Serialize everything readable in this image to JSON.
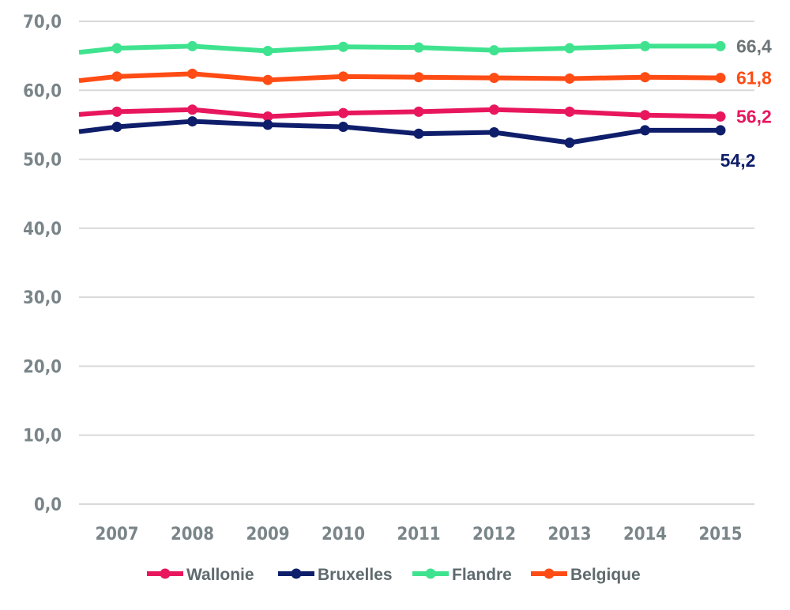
{
  "chart_data": {
    "type": "line",
    "title": "",
    "xlabel": "",
    "ylabel": "",
    "categories": [
      "2007",
      "2008",
      "2009",
      "2010",
      "2011",
      "2012",
      "2013",
      "2014",
      "2015"
    ],
    "ylim": [
      0,
      70
    ],
    "yticks": [
      "0,0",
      "10,0",
      "20,0",
      "30,0",
      "40,0",
      "50,0",
      "60,0",
      "70,0"
    ],
    "grid": true,
    "legend_position": "bottom",
    "series": [
      {
        "name": "Wallonie",
        "color": "#e8175d",
        "start_value": 56.5,
        "values": [
          56.9,
          57.2,
          56.2,
          56.7,
          56.9,
          57.2,
          56.9,
          56.4,
          56.2
        ],
        "end_label": "56,2"
      },
      {
        "name": "Bruxelles",
        "color": "#0f1e6b",
        "start_value": 54.0,
        "values": [
          54.7,
          55.5,
          55.0,
          54.7,
          53.7,
          53.9,
          52.4,
          54.2,
          54.2
        ],
        "end_label": "54,2"
      },
      {
        "name": "Flandre",
        "color": "#3fe38f",
        "start_value": 65.5,
        "values": [
          66.1,
          66.4,
          65.7,
          66.3,
          66.2,
          65.8,
          66.1,
          66.4,
          66.4
        ],
        "end_label": "66,4",
        "end_label_color": "#6b7578"
      },
      {
        "name": "Belgique",
        "color": "#ff4c14",
        "start_value": 61.4,
        "values": [
          62.0,
          62.4,
          61.5,
          62.0,
          61.9,
          61.8,
          61.7,
          61.9,
          61.8
        ],
        "end_label": "61,8"
      }
    ]
  }
}
